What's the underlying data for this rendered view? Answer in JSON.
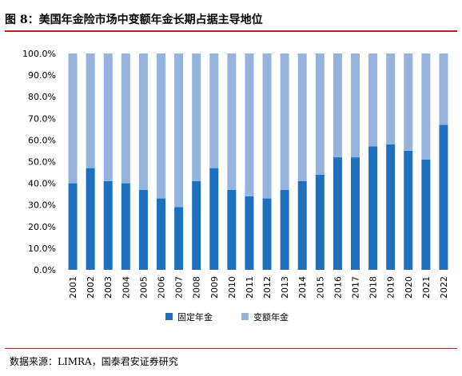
{
  "figure": {
    "title": "图 8：美国年金险市场中变额年金长期占据主导地位",
    "source": "数据来源：LIMRA，国泰君安证券研究"
  },
  "colors": {
    "fixed": "#1f6fbf",
    "variable": "#95b3dd",
    "rule": "#b51f24"
  },
  "chart_data": {
    "type": "bar",
    "stacked": true,
    "percent": true,
    "categories": [
      "2001",
      "2002",
      "2003",
      "2004",
      "2005",
      "2006",
      "2007",
      "2008",
      "2009",
      "2010",
      "2011",
      "2012",
      "2013",
      "2014",
      "2015",
      "2016",
      "2017",
      "2018",
      "2019",
      "2020",
      "2021",
      "2022"
    ],
    "series": [
      {
        "name": "固定年金",
        "values": [
          40,
          47,
          41,
          40,
          37,
          33,
          29,
          41,
          47,
          37,
          34,
          33,
          37,
          41,
          44,
          52,
          52,
          57,
          58,
          55,
          51,
          67
        ]
      },
      {
        "name": "变额年金",
        "values": [
          60,
          53,
          59,
          60,
          63,
          67,
          71,
          59,
          53,
          63,
          66,
          67,
          63,
          59,
          56,
          48,
          48,
          43,
          42,
          45,
          49,
          33
        ]
      }
    ],
    "yticks": [
      "0.0%",
      "10.0%",
      "20.0%",
      "30.0%",
      "40.0%",
      "50.0%",
      "60.0%",
      "70.0%",
      "80.0%",
      "90.0%",
      "100.0%"
    ],
    "ylim": [
      0,
      100
    ],
    "grid": false,
    "legend": "bottom"
  }
}
